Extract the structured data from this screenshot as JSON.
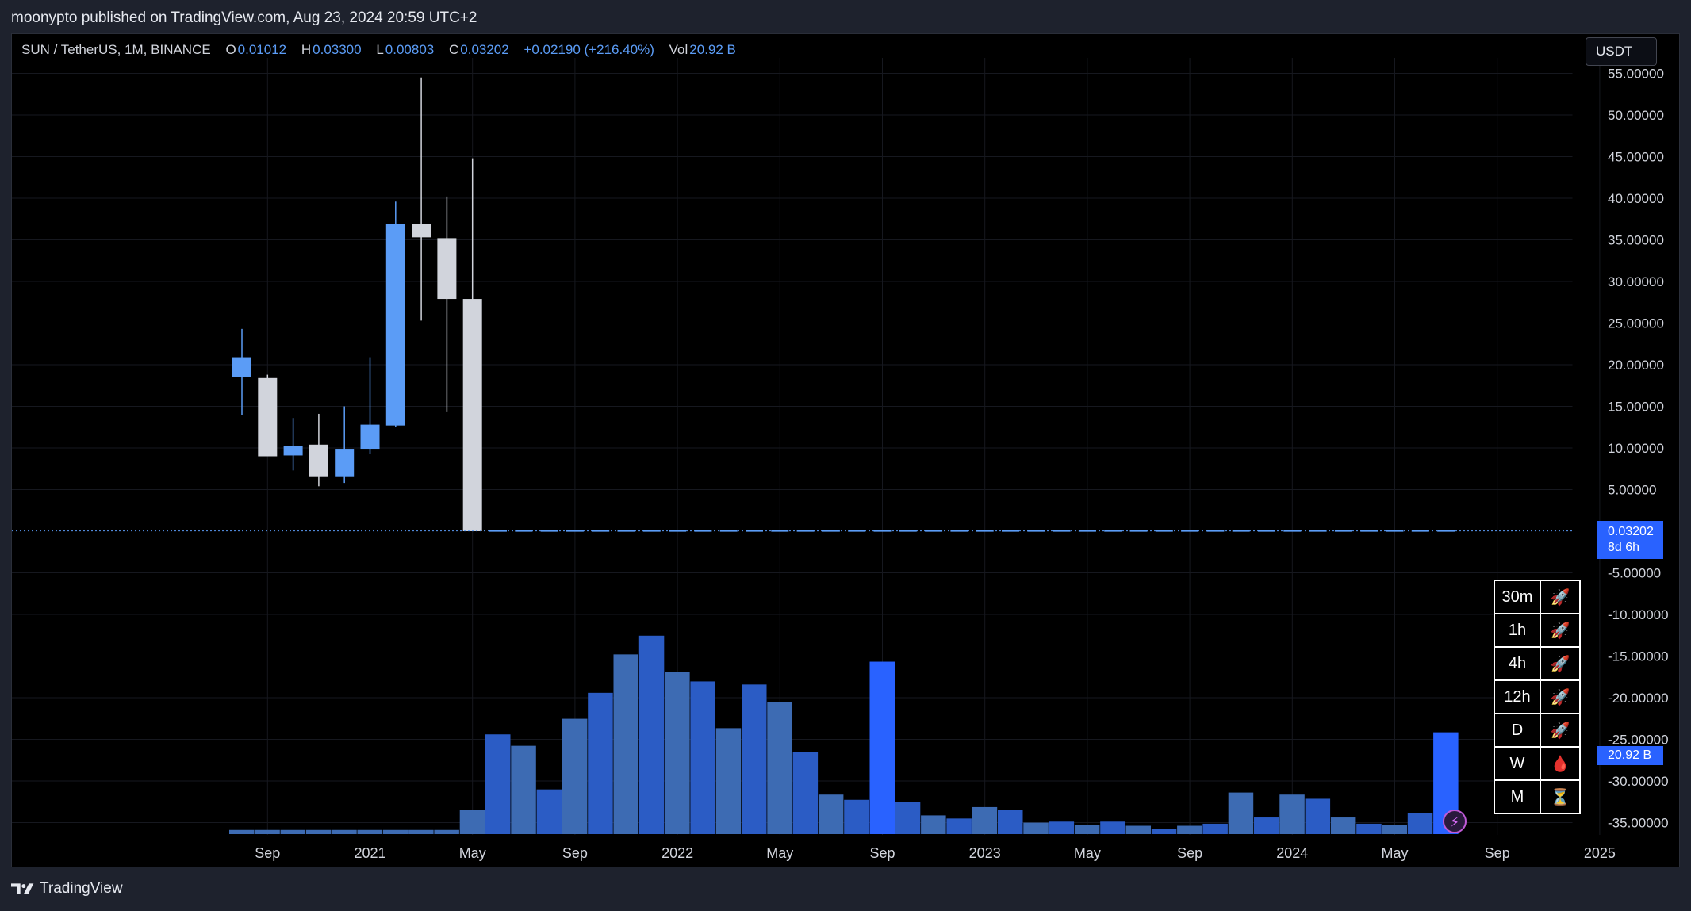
{
  "header": {
    "publisher": "moonypto published on TradingView.com, Aug 23, 2024 20:59 UTC+2"
  },
  "legend": {
    "symbol": "SUN / TetherUS, 1M, BINANCE",
    "o_label": "O",
    "o_value": "0.01012",
    "h_label": "H",
    "h_value": "0.03300",
    "l_label": "L",
    "l_value": "0.00803",
    "c_label": "C",
    "c_value": "0.03202",
    "change": "+0.02190 (+216.40%)",
    "vol_label": "Vol",
    "vol_value": "20.92 B"
  },
  "currency_button": "USDT",
  "price_tag": {
    "price": "0.03202",
    "countdown": "8d 6h"
  },
  "volume_tag": "20.92 B",
  "timeframes": [
    {
      "tf": "30m",
      "status_icon": "rocket-icon",
      "glyph": "🚀"
    },
    {
      "tf": "1h",
      "status_icon": "rocket-icon",
      "glyph": "🚀"
    },
    {
      "tf": "4h",
      "status_icon": "rocket-icon",
      "glyph": "🚀"
    },
    {
      "tf": "12h",
      "status_icon": "rocket-icon",
      "glyph": "🚀"
    },
    {
      "tf": "D",
      "status_icon": "rocket-icon",
      "glyph": "🚀"
    },
    {
      "tf": "W",
      "status_icon": "drop-icon",
      "glyph": "🩸"
    },
    {
      "tf": "M",
      "status_icon": "hourglass-icon",
      "glyph": "⏳"
    }
  ],
  "footer": {
    "brand": "TradingView"
  },
  "colors": {
    "up": "#5b9cf6",
    "down": "#d1d4dc",
    "volume_blue": "#2962ff",
    "volume_grey_blue": "#3d6bb3",
    "background": "#000000"
  },
  "chart_data": {
    "type": "candlestick",
    "y_ticks": [
      "55.00000",
      "50.00000",
      "45.00000",
      "40.00000",
      "35.00000",
      "30.00000",
      "25.00000",
      "20.00000",
      "15.00000",
      "10.00000",
      "5.00000",
      "-5.00000",
      "-10.00000",
      "-15.00000",
      "-20.00000",
      "-25.00000",
      "-30.00000",
      "-35.00000"
    ],
    "x_ticks": [
      "Sep",
      "2021",
      "May",
      "Sep",
      "2022",
      "May",
      "Sep",
      "2023",
      "May",
      "Sep",
      "2024",
      "May",
      "Sep",
      "2025"
    ],
    "ylim": [
      -37.2,
      56
    ],
    "candles": [
      {
        "o": 18.5,
        "h": 24.3,
        "l": 14.0,
        "c": 20.9
      },
      {
        "o": 18.4,
        "h": 18.8,
        "l": 9.0,
        "c": 9.0
      },
      {
        "o": 9.1,
        "h": 13.6,
        "l": 7.3,
        "c": 10.2
      },
      {
        "o": 10.4,
        "h": 14.1,
        "l": 5.4,
        "c": 6.6
      },
      {
        "o": 6.6,
        "h": 15.0,
        "l": 5.8,
        "c": 9.9
      },
      {
        "o": 9.9,
        "h": 20.9,
        "l": 9.3,
        "c": 12.8
      },
      {
        "o": 12.7,
        "h": 39.6,
        "l": 12.5,
        "c": 36.9
      },
      {
        "o": 36.9,
        "h": 54.5,
        "l": 25.3,
        "c": 35.3
      },
      {
        "o": 35.2,
        "h": 40.2,
        "l": 14.3,
        "c": 27.9
      },
      {
        "o": 27.9,
        "h": 44.8,
        "l": 0.0,
        "c": 0.0
      }
    ],
    "flat_value": 0.03202,
    "volume": [
      0.4,
      0.4,
      0.4,
      0.4,
      0.4,
      0.4,
      0.4,
      0.4,
      0.4,
      2.3,
      9.6,
      8.5,
      4.3,
      11.1,
      13.6,
      17.3,
      19.1,
      15.6,
      14.7,
      10.2,
      14.4,
      12.7,
      7.9,
      3.8,
      3.3,
      16.6,
      3.1,
      1.8,
      1.5,
      2.6,
      2.3,
      1.1,
      1.2,
      0.9,
      1.2,
      0.8,
      0.5,
      0.8,
      1.0,
      4.0,
      1.6,
      3.8,
      3.4,
      1.6,
      1.0,
      0.9,
      2.0,
      9.8
    ]
  }
}
